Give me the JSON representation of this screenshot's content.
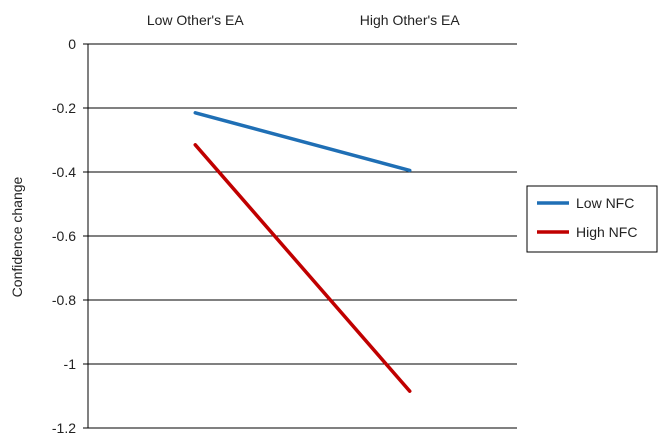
{
  "chart_data": {
    "type": "line",
    "categories": [
      "Low Other's EA",
      "High Other's EA"
    ],
    "category_axis_position": "top",
    "series": [
      {
        "name": "Low NFC",
        "values": [
          -0.215,
          -0.395
        ],
        "color": "#1f6fb5"
      },
      {
        "name": "High NFC",
        "values": [
          -0.315,
          -1.085
        ],
        "color": "#c00000"
      }
    ],
    "title": "",
    "xlabel": "",
    "ylabel": "Confidence change",
    "ylim": [
      -1.2,
      0
    ],
    "yticks": [
      0,
      -0.2,
      -0.4,
      -0.6,
      -0.8,
      -1,
      -1.2
    ],
    "ytick_labels": [
      "0",
      "-0.2",
      "-0.4",
      "-0.6",
      "-0.8",
      "-1",
      "-1.2"
    ],
    "grid": true,
    "legend_position": "right"
  }
}
